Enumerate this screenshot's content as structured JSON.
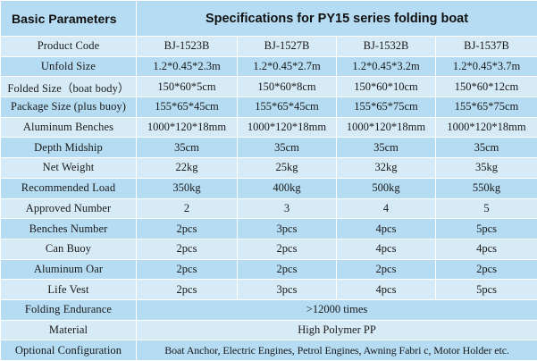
{
  "header": {
    "left": "Basic Parameters",
    "right": "Specifications for PY15 series folding boat"
  },
  "rows": [
    {
      "label": "Product Code",
      "values": [
        "BJ-1523B",
        "BJ-1527B",
        "BJ-1532B",
        "BJ-1537B"
      ]
    },
    {
      "label": "Unfold Size",
      "values": [
        "1.2*0.45*2.3m",
        "1.2*0.45*2.7m",
        "1.2*0.45*3.2m",
        "1.2*0.45*3.7m"
      ]
    },
    {
      "label": "Folded Size（boat body）",
      "values": [
        "150*60*5cm",
        "150*60*8cm",
        "150*60*10cm",
        "150*60*12cm"
      ]
    },
    {
      "label": "Package Size (plus buoy)",
      "values": [
        "155*65*45cm",
        "155*65*45cm",
        "155*65*75cm",
        "155*65*75cm"
      ]
    },
    {
      "label": "Aluminum Benches",
      "values": [
        "1000*120*18mm",
        "1000*120*18mm",
        "1000*120*18mm",
        "1000*120*18mm"
      ]
    },
    {
      "label": "Depth Midship",
      "values": [
        "35cm",
        "35cm",
        "35cm",
        "35cm"
      ]
    },
    {
      "label": "Net Weight",
      "values": [
        "22kg",
        "25kg",
        "32kg",
        "35kg"
      ]
    },
    {
      "label": "Recommended Load",
      "values": [
        "350kg",
        "400kg",
        "500kg",
        "550kg"
      ]
    },
    {
      "label": "Approved Number",
      "values": [
        "2",
        "3",
        "4",
        "5"
      ]
    },
    {
      "label": "Benches Number",
      "values": [
        "2pcs",
        "3pcs",
        "4pcs",
        "5pcs"
      ]
    },
    {
      "label": "Can Buoy",
      "values": [
        "2pcs",
        "2pcs",
        "4pcs",
        "4pcs"
      ]
    },
    {
      "label": "Aluminum Oar",
      "values": [
        "2pcs",
        "2pcs",
        "2pcs",
        "2pcs"
      ]
    },
    {
      "label": "Life Vest",
      "values": [
        "2pcs",
        "3pcs",
        "4pcs",
        "5pcs"
      ]
    }
  ],
  "merged_rows": [
    {
      "label": "Folding Endurance",
      "value": ">12000 times"
    },
    {
      "label": "Material",
      "value": "High Polymer PP"
    },
    {
      "label": "Optional Configuration",
      "value": "Boat Anchor, Electric Engines, Petrol Engines, Awning Fabri c, Motor Holder etc."
    }
  ],
  "colors": {
    "light_row": "#d7ebf7",
    "dark_row": "#b5dcf2"
  }
}
